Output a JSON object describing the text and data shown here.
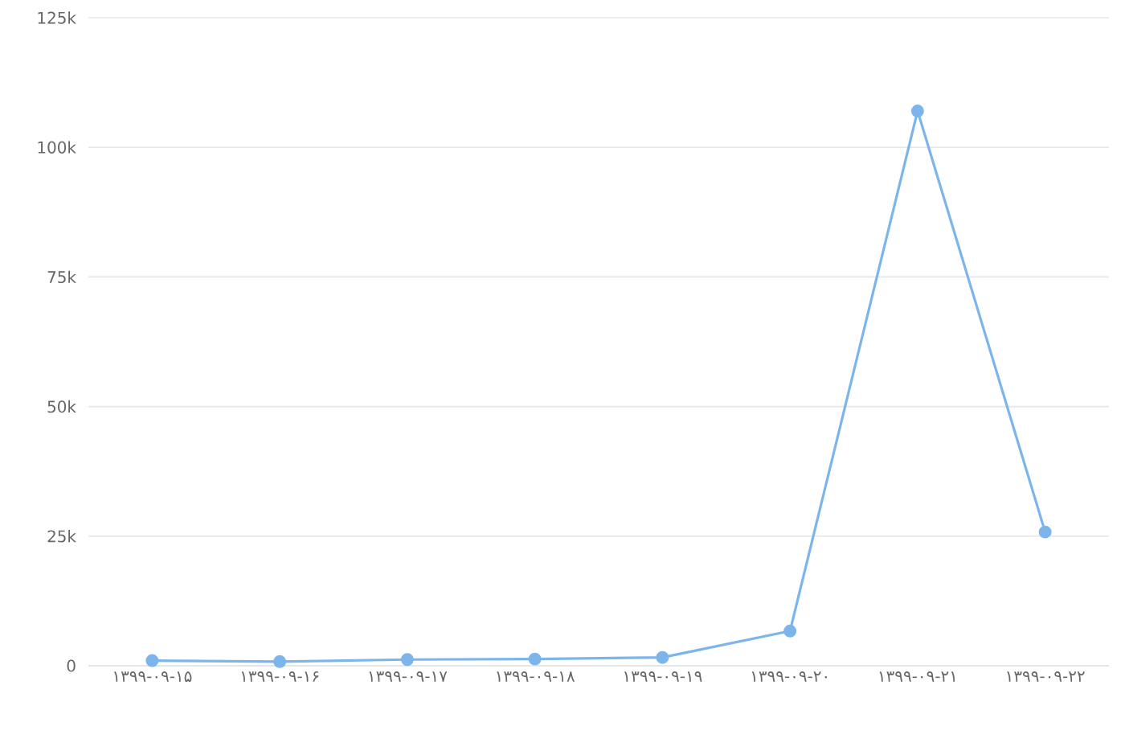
{
  "chart_data": {
    "type": "line",
    "categories": [
      "۱۳۹۹-۰۹-۱۵",
      "۱۳۹۹-۰۹-۱۶",
      "۱۳۹۹-۰۹-۱۷",
      "۱۳۹۹-۰۹-۱۸",
      "۱۳۹۹-۰۹-۱۹",
      "۱۳۹۹-۰۹-۲۰",
      "۱۳۹۹-۰۹-۲۱",
      "۱۳۹۹-۰۹-۲۲"
    ],
    "series": [
      {
        "color": "#7cb5ec",
        "values": [
          1000,
          800,
          1200,
          1300,
          1600,
          6700,
          107000,
          25800
        ]
      }
    ],
    "ylim": [
      0,
      125000
    ],
    "yticks": [
      {
        "value": 0,
        "label": "0"
      },
      {
        "value": 25000,
        "label": "25k"
      },
      {
        "value": 50000,
        "label": "50k"
      },
      {
        "value": 75000,
        "label": "75k"
      },
      {
        "value": 100000,
        "label": "100k"
      },
      {
        "value": 125000,
        "label": "125k"
      }
    ],
    "grid": "y",
    "marker": "circle",
    "line_style": "solid"
  }
}
